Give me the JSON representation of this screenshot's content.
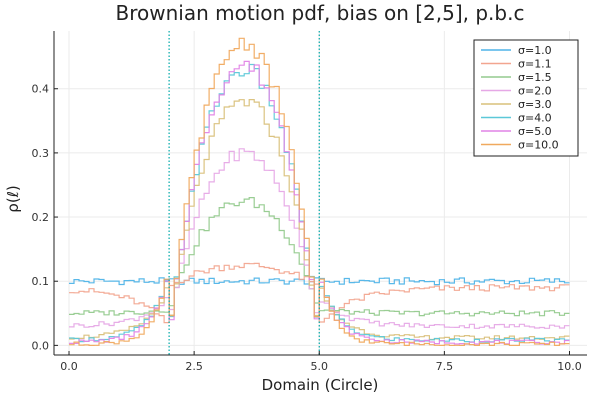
{
  "chart_data": {
    "type": "line",
    "step": true,
    "title": "Brownian motion pdf, bias on [2,5], p.b.c",
    "xlabel": "Domain (Circle)",
    "ylabel": "ρ(ℓ)",
    "xlim": [
      -0.3,
      10.35
    ],
    "ylim": [
      -0.015,
      0.49
    ],
    "xticks": [
      0.0,
      2.5,
      5.0,
      7.5,
      10.0
    ],
    "xtick_labels": [
      "0.0",
      "2.5",
      "5.0",
      "7.5",
      "10.0"
    ],
    "yticks": [
      0.0,
      0.1,
      0.2,
      0.3,
      0.4
    ],
    "ytick_labels": [
      "0.0",
      "0.1",
      "0.2",
      "0.3",
      "0.4"
    ],
    "grid": true,
    "legend": "top-right",
    "vlines": [
      2.0,
      5.0
    ],
    "vline_color": "#00a8a8",
    "bias_interval": [
      2.0,
      5.0
    ],
    "x_range": [
      0.0,
      10.0
    ],
    "series": [
      {
        "name": "σ=1.0",
        "color": "#4fb4e8",
        "outside": 0.1,
        "peak": 0.1,
        "dropFactor": 1.0
      },
      {
        "name": "σ=1.1",
        "color": "#f2a58f",
        "outside": 0.09,
        "peak": 0.125,
        "dropFactor": 0.9
      },
      {
        "name": "σ=1.5",
        "color": "#93ca8d",
        "outside": 0.05,
        "peak": 0.225,
        "dropFactor": 0.75
      },
      {
        "name": "σ=2.0",
        "color": "#e6a8e6",
        "outside": 0.03,
        "peak": 0.3,
        "dropFactor": 0.6
      },
      {
        "name": "σ=3.0",
        "color": "#d9c07a",
        "outside": 0.012,
        "peak": 0.38,
        "dropFactor": 0.45
      },
      {
        "name": "σ=4.0",
        "color": "#5cc8d8",
        "outside": 0.008,
        "peak": 0.43,
        "dropFactor": 0.35
      },
      {
        "name": "σ=5.0",
        "color": "#e184e6",
        "outside": 0.005,
        "peak": 0.437,
        "dropFactor": 0.3
      },
      {
        "name": "σ=10.0",
        "color": "#f0a95e",
        "outside": 0.002,
        "peak": 0.472,
        "dropFactor": 0.2
      }
    ]
  }
}
